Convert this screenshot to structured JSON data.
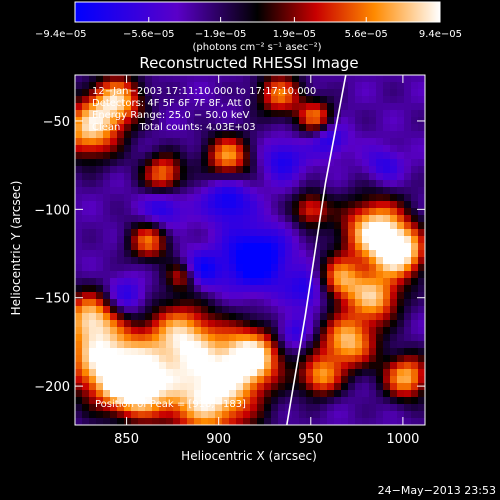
{
  "chart_data": {
    "type": "heatmap",
    "title": "Reconstructed RHESSI Image",
    "xlabel": "Heliocentric X (arcsec)",
    "ylabel": "Heliocentric Y (arcsec)",
    "xlim": [
      822,
      1012
    ],
    "ylim": [
      -222,
      -24
    ],
    "x_ticks": [
      850,
      900,
      950,
      1000
    ],
    "x_tick_labels": [
      "850",
      "900",
      "950",
      "1000"
    ],
    "y_ticks": [
      -50,
      -100,
      -150,
      -200
    ],
    "y_tick_labels": [
      "−50",
      "−100",
      "−150",
      "−200"
    ],
    "colorbar": {
      "min": -9.4e-05,
      "max": 9.4e-05,
      "tick_labels": [
        "−9.4e−05",
        "−5.6e−05",
        "−1.9e−05",
        "1.9e−05",
        "5.6e−05",
        "9.4e−05"
      ],
      "tick_values": [
        -9.4e-05,
        -5.6e-05,
        -1.9e-05,
        1.9e-05,
        5.6e-05,
        9.4e-05
      ],
      "units_label": "(photons cm⁻² s⁻¹ asec⁻²)"
    },
    "annotations": [
      "12−Jan−2003 17:11:10.000 to 17:17:10.000",
      "Detectors: 4F 5F 6F 7F 8F, Att 0",
      "Energy Range: 25.0 − 50.0 keV",
      "Clean      Total counts: 4.03E+03"
    ],
    "peak_label": "Position of Peak = [918,−183]",
    "sources": [
      {
        "x": 838,
        "y": -185,
        "r": 16,
        "v": 0.9
      },
      {
        "x": 855,
        "y": -200,
        "r": 12,
        "v": 1.0
      },
      {
        "x": 895,
        "y": -205,
        "r": 18,
        "v": 1.0
      },
      {
        "x": 918,
        "y": -183,
        "r": 12,
        "v": 0.9
      },
      {
        "x": 880,
        "y": -172,
        "r": 14,
        "v": 0.75
      },
      {
        "x": 830,
        "y": -160,
        "r": 10,
        "v": 0.6
      },
      {
        "x": 830,
        "y": -55,
        "r": 12,
        "v": 0.8
      },
      {
        "x": 845,
        "y": -38,
        "r": 10,
        "v": 0.7
      },
      {
        "x": 870,
        "y": -80,
        "r": 8,
        "v": 0.6
      },
      {
        "x": 905,
        "y": -70,
        "r": 9,
        "v": 0.65
      },
      {
        "x": 933,
        "y": -35,
        "r": 9,
        "v": 0.55
      },
      {
        "x": 953,
        "y": -48,
        "r": 7,
        "v": 0.55
      },
      {
        "x": 985,
        "y": -112,
        "r": 13,
        "v": 0.95
      },
      {
        "x": 999,
        "y": -125,
        "r": 10,
        "v": 0.8
      },
      {
        "x": 965,
        "y": -140,
        "r": 9,
        "v": 0.65
      },
      {
        "x": 985,
        "y": -150,
        "r": 10,
        "v": 0.7
      },
      {
        "x": 970,
        "y": -175,
        "r": 11,
        "v": 0.8
      },
      {
        "x": 1002,
        "y": -195,
        "r": 9,
        "v": 0.75
      },
      {
        "x": 955,
        "y": -195,
        "r": 8,
        "v": 0.6
      },
      {
        "x": 862,
        "y": -118,
        "r": 8,
        "v": 0.55
      },
      {
        "x": 950,
        "y": -100,
        "r": 7,
        "v": 0.45
      },
      {
        "x": 880,
        "y": -138,
        "r": 6,
        "v": 0.4
      }
    ],
    "dips": [
      {
        "x": 920,
        "y": -128,
        "r": 12,
        "v": -0.9
      },
      {
        "x": 890,
        "y": -135,
        "r": 8,
        "v": -0.6
      },
      {
        "x": 905,
        "y": -95,
        "r": 9,
        "v": -0.6
      },
      {
        "x": 870,
        "y": -100,
        "r": 8,
        "v": -0.5
      },
      {
        "x": 950,
        "y": -145,
        "r": 8,
        "v": -0.6
      },
      {
        "x": 935,
        "y": -72,
        "r": 8,
        "v": -0.5
      },
      {
        "x": 960,
        "y": -60,
        "r": 7,
        "v": -0.5
      },
      {
        "x": 850,
        "y": -150,
        "r": 8,
        "v": -0.5
      },
      {
        "x": 940,
        "y": -170,
        "r": 7,
        "v": -0.5
      },
      {
        "x": 990,
        "y": -75,
        "r": 7,
        "v": -0.4
      }
    ],
    "limb": [
      [
        969,
        -24
      ],
      [
        958,
        -85
      ],
      [
        947,
        -160
      ],
      [
        937,
        -222
      ]
    ]
  },
  "footer": {
    "date": "24−May−2013 23:53"
  }
}
